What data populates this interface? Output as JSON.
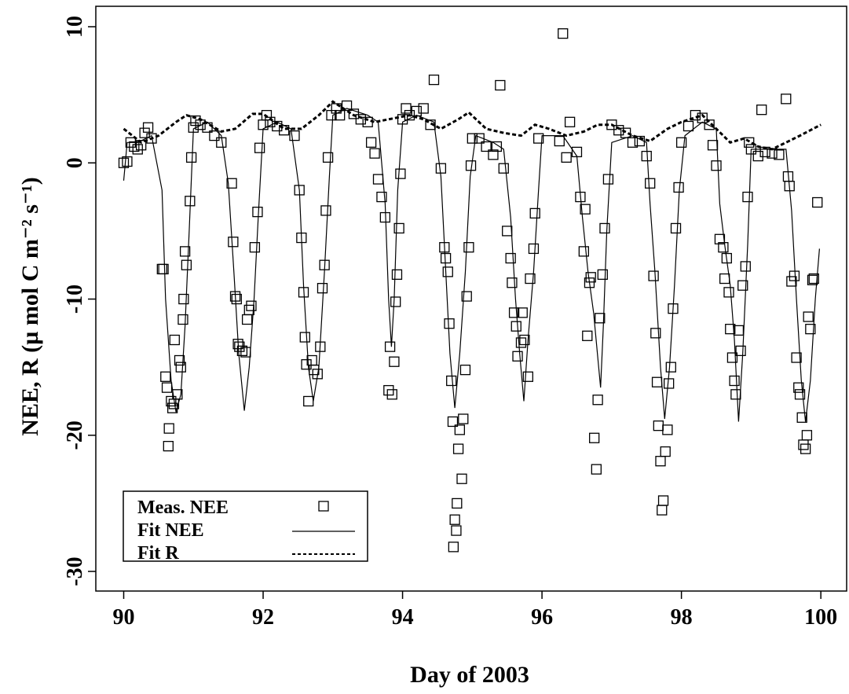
{
  "chart_data": {
    "type": "scatter",
    "xlabel": "Day of 2003",
    "ylabel": "NEE, R    (µ mol C m⁻² s⁻¹)",
    "xlim": [
      89.6,
      100.37
    ],
    "ylim": [
      -31.44,
      11.5
    ],
    "xticks": [
      90,
      92,
      94,
      96,
      98,
      100
    ],
    "yticks": [
      -30,
      -20,
      -10,
      0,
      10
    ],
    "legend": "bottom-left",
    "series": [
      {
        "name": "Meas. NEE",
        "marker": "square",
        "color": "#000000",
        "x": [
          90.0,
          90.05,
          90.1,
          90.15,
          90.2,
          90.25,
          90.3,
          90.35,
          90.4,
          90.55,
          90.57,
          90.6,
          90.62,
          90.65,
          90.64,
          90.68,
          90.7,
          90.72,
          90.73,
          90.77,
          90.8,
          90.82,
          90.85,
          90.86,
          90.88,
          90.9,
          90.95,
          90.97,
          91.0,
          91.03,
          91.1,
          91.2,
          91.3,
          91.4,
          91.55,
          91.57,
          91.6,
          91.62,
          91.64,
          91.66,
          91.7,
          91.75,
          91.77,
          91.8,
          91.83,
          91.88,
          91.92,
          91.95,
          92.0,
          92.05,
          92.1,
          92.2,
          92.3,
          92.45,
          92.52,
          92.55,
          92.58,
          92.6,
          92.62,
          92.65,
          92.7,
          92.73,
          92.78,
          92.82,
          92.85,
          92.88,
          92.9,
          92.93,
          92.98,
          93.05,
          93.1,
          93.2,
          93.3,
          93.4,
          93.5,
          93.55,
          93.6,
          93.65,
          93.7,
          93.75,
          93.8,
          93.82,
          93.85,
          93.88,
          93.9,
          93.92,
          93.95,
          93.97,
          94.0,
          94.05,
          94.1,
          94.2,
          94.3,
          94.4,
          94.45,
          94.55,
          94.6,
          94.62,
          94.65,
          94.67,
          94.7,
          94.72,
          94.73,
          94.75,
          94.77,
          94.78,
          94.8,
          94.82,
          94.85,
          94.87,
          94.9,
          94.92,
          94.95,
          94.98,
          95.0,
          95.1,
          95.2,
          95.3,
          95.35,
          95.4,
          95.45,
          95.5,
          95.55,
          95.57,
          95.6,
          95.63,
          95.65,
          95.7,
          95.72,
          95.75,
          95.8,
          95.83,
          95.88,
          95.9,
          95.95,
          96.25,
          96.3,
          96.35,
          96.4,
          96.5,
          96.55,
          96.6,
          96.62,
          96.65,
          96.68,
          96.7,
          96.75,
          96.78,
          96.8,
          96.83,
          96.87,
          96.9,
          96.95,
          97.0,
          97.1,
          97.2,
          97.3,
          97.4,
          97.5,
          97.55,
          97.6,
          97.63,
          97.65,
          97.67,
          97.7,
          97.72,
          97.74,
          97.77,
          97.8,
          97.82,
          97.85,
          97.88,
          97.92,
          97.96,
          98.0,
          98.1,
          98.2,
          98.3,
          98.4,
          98.45,
          98.5,
          98.55,
          98.6,
          98.62,
          98.65,
          98.68,
          98.7,
          98.73,
          98.76,
          98.78,
          98.82,
          98.85,
          98.88,
          98.92,
          98.95,
          98.97,
          99.0,
          99.1,
          99.2,
          99.3,
          99.4,
          99.15,
          99.5,
          99.53,
          99.55,
          99.58,
          99.62,
          99.65,
          99.68,
          99.7,
          99.73,
          99.75,
          99.78,
          99.8,
          99.82,
          99.85,
          99.88,
          99.9,
          99.95
        ],
        "values": [
          0,
          0.1,
          1.5,
          1.2,
          1.0,
          1.3,
          2.2,
          2.6,
          1.8,
          -7.8,
          -7.8,
          -15.7,
          -16.5,
          -19.5,
          -20.8,
          -17.5,
          -18,
          -17.7,
          -13,
          -17,
          -14.5,
          -15,
          -11.5,
          -10,
          -6.5,
          -7.5,
          -2.8,
          0.4,
          2.6,
          3.1,
          2.8,
          2.6,
          2.0,
          1.5,
          -1.5,
          -5.8,
          -9.8,
          -10,
          -13.3,
          -13.5,
          -13.8,
          -13.9,
          -11.5,
          -10.8,
          -10.5,
          -6.2,
          -3.6,
          1.1,
          2.8,
          3.5,
          3.0,
          2.7,
          2.4,
          2.0,
          -2,
          -5.5,
          -9.5,
          -12.8,
          -14.8,
          -17.5,
          -14.5,
          -15.2,
          -15.5,
          -13.5,
          -9.2,
          -7.5,
          -3.5,
          0.4,
          3.5,
          4.0,
          3.5,
          4.2,
          3.6,
          3.2,
          3.0,
          1.5,
          0.7,
          -1.2,
          -2.5,
          -4,
          -16.7,
          -13.5,
          -17,
          -14.6,
          -10.2,
          -8.2,
          -4.8,
          -0.8,
          3.2,
          4.0,
          3.5,
          3.8,
          4.0,
          2.8,
          6.1,
          -0.4,
          -6.2,
          -7,
          -8,
          -11.8,
          -16,
          -19,
          -28.2,
          -26.2,
          -27,
          -25,
          -21,
          -19.6,
          -23.2,
          -18.8,
          -15.2,
          -9.8,
          -6.2,
          -0.2,
          1.8,
          1.8,
          1.2,
          0.6,
          1.2,
          5.7,
          -0.4,
          -5,
          -7,
          -8.8,
          -11,
          -12,
          -14.2,
          -13.2,
          -11,
          -13,
          -15.7,
          -8.5,
          -6.3,
          -3.7,
          1.8,
          1.6,
          9.5,
          0.4,
          3,
          0.8,
          -2.5,
          -6.5,
          -3.4,
          -12.7,
          -8.8,
          -8.4,
          -20.2,
          -22.5,
          -17.4,
          -11.4,
          -8.2,
          -4.8,
          -1.2,
          2.8,
          2.4,
          2.2,
          1.5,
          1.6,
          0.5,
          -1.5,
          -8.3,
          -12.5,
          -16.1,
          -19.3,
          -21.9,
          -25.5,
          -24.8,
          -21.2,
          -19.6,
          -16.2,
          -15,
          -10.7,
          -4.8,
          -1.8,
          1.5,
          2.7,
          3.5,
          3.3,
          2.8,
          1.3,
          -0.2,
          -5.6,
          -6.2,
          -8.5,
          -7,
          -9.5,
          -12.2,
          -14.3,
          -16,
          -17,
          -12.3,
          -13.8,
          -9,
          -7.6,
          -2.5,
          1.5,
          1,
          0.5,
          0.8,
          0.7,
          0.6,
          3.9,
          4.7,
          -1.0,
          -1.7,
          -8.7,
          -8.3,
          -14.3,
          -16.5,
          -17,
          -18.7,
          -20.7,
          -21,
          -20,
          -11.3,
          -12.2,
          -8.6,
          -8.5,
          -2.9
        ]
      },
      {
        "name": "Fit NEE",
        "line": "solid",
        "color": "#000000",
        "x": [
          90.0,
          90.05,
          90.2,
          90.4,
          90.55,
          90.6,
          90.68,
          90.75,
          90.82,
          90.88,
          90.94,
          91.0,
          91.2,
          91.4,
          91.5,
          91.58,
          91.65,
          91.73,
          91.8,
          91.87,
          91.93,
          92.0,
          92.2,
          92.4,
          92.52,
          92.58,
          92.65,
          92.72,
          92.8,
          92.88,
          92.95,
          93.0,
          93.2,
          93.5,
          93.65,
          93.75,
          93.8,
          93.84,
          93.88,
          93.93,
          94.0,
          94.2,
          94.45,
          94.55,
          94.62,
          94.68,
          94.75,
          94.82,
          94.9,
          94.97,
          95.05,
          95.3,
          95.45,
          95.55,
          95.62,
          95.68,
          95.74,
          95.8,
          95.88,
          95.95,
          96.0,
          96.3,
          96.5,
          96.58,
          96.66,
          96.74,
          96.84,
          96.88,
          96.93,
          97.0,
          97.3,
          97.5,
          97.55,
          97.62,
          97.7,
          97.76,
          97.83,
          97.9,
          97.97,
          98.05,
          98.3,
          98.5,
          98.55,
          98.62,
          98.7,
          98.76,
          98.82,
          98.88,
          98.95,
          99.0,
          99.2,
          99.5,
          99.58,
          99.65,
          99.72,
          99.78,
          99.85,
          99.92,
          99.98
        ],
        "values": [
          -1.3,
          1.5,
          1.5,
          2,
          -2,
          -10,
          -16,
          -18.3,
          -17,
          -12,
          -5,
          2.5,
          3,
          2,
          -1.5,
          -8,
          -14,
          -18.2,
          -15,
          -10,
          -4,
          2.5,
          3,
          2.5,
          -2,
          -9,
          -15,
          -17.5,
          -15,
          -8,
          -1,
          3.5,
          4,
          3.5,
          3,
          -3,
          -10,
          -13.5,
          -10,
          -2,
          3,
          3.5,
          3,
          -1,
          -8,
          -14,
          -18,
          -14,
          -8,
          -1,
          2,
          1.5,
          1,
          -4,
          -10,
          -14,
          -17.5,
          -13,
          -8,
          -2,
          2,
          2,
          0.5,
          -4,
          -8,
          -11,
          -16.5,
          -12,
          -5,
          1.5,
          2,
          1.5,
          -3,
          -8,
          -15,
          -18.8,
          -15,
          -9,
          -2,
          2,
          3,
          2.5,
          -3,
          -6,
          -9,
          -13,
          -19,
          -14,
          -6,
          1,
          1,
          1,
          -3.5,
          -10,
          -16,
          -19,
          -16,
          -10,
          -6.3
        ]
      },
      {
        "name": "Fit R",
        "line": "dashed",
        "color": "#000000",
        "x": [
          90.0,
          90.25,
          90.5,
          90.75,
          90.9,
          91.1,
          91.4,
          91.6,
          91.85,
          92.0,
          92.3,
          92.55,
          92.8,
          93.0,
          93.3,
          93.6,
          93.8,
          94.1,
          94.3,
          94.55,
          94.8,
          94.95,
          95.2,
          95.45,
          95.7,
          95.9,
          96.1,
          96.35,
          96.6,
          96.8,
          97.0,
          97.3,
          97.55,
          97.8,
          98.0,
          98.3,
          98.5,
          98.7,
          98.9,
          99.1,
          99.3,
          99.5,
          99.7,
          100.0
        ],
        "values": [
          2.5,
          1.5,
          2,
          3,
          3.5,
          3.2,
          2.3,
          2.5,
          3.6,
          3.6,
          2.5,
          2.5,
          3.5,
          4.5,
          3.5,
          3,
          3.2,
          3.5,
          3.2,
          2.5,
          3.2,
          3.7,
          2.5,
          2.2,
          2,
          2.8,
          2.5,
          2,
          2.3,
          2.8,
          2.8,
          2,
          1.6,
          2.5,
          3,
          3.5,
          2.5,
          1.5,
          1.8,
          1.2,
          1,
          1.5,
          2,
          2.8
        ]
      }
    ]
  }
}
